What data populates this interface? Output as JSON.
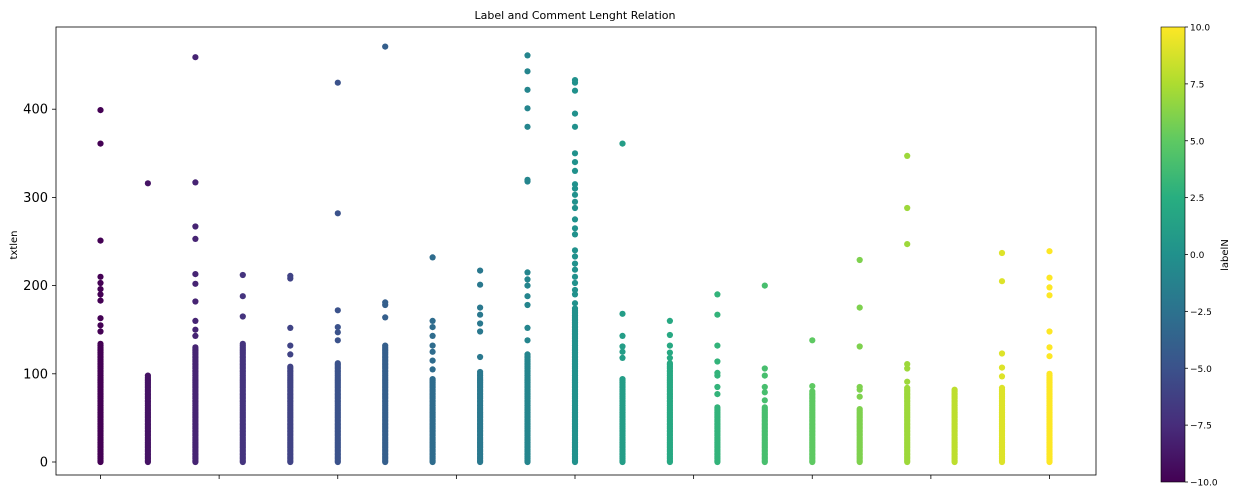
{
  "chart_data": {
    "type": "scatter",
    "title": "Label and Comment Lenght Relation",
    "xlabel": "",
    "ylabel": "txtlen",
    "ylim": [
      -10,
      490
    ],
    "xlim": [
      -10.9,
      10.9
    ],
    "y_ticks": [
      0,
      100,
      200,
      300,
      400
    ],
    "x_ticks": [
      -10,
      -7.5,
      -5,
      -2.5,
      0,
      2.5,
      5,
      7.5,
      10
    ],
    "x_tick_labels_visible": false,
    "grid": false,
    "colormap": "viridis",
    "colorbar": {
      "label": "labelN",
      "range": [
        -10,
        10
      ],
      "ticks": [
        10,
        7.5,
        5,
        2.5,
        0,
        -2.5,
        -5,
        -7.5,
        -10
      ],
      "tick_labels": [
        "10.0",
        "7.5",
        "5.0",
        "2.5",
        "0.0",
        "−2.5",
        "−5.0",
        "−7.5",
        "−10.0"
      ]
    },
    "series": [
      {
        "x": -10,
        "dense_max": 135,
        "outliers": [
          148,
          155,
          163,
          183,
          190,
          196,
          203,
          210,
          251,
          361,
          399
        ]
      },
      {
        "x": -9,
        "dense_max": 98,
        "outliers": [
          316
        ]
      },
      {
        "x": -8,
        "dense_max": 130,
        "outliers": [
          143,
          150,
          160,
          182,
          202,
          213,
          253,
          267,
          317,
          459
        ]
      },
      {
        "x": -7,
        "dense_max": 135,
        "outliers": [
          165,
          188,
          212
        ]
      },
      {
        "x": -6,
        "dense_max": 108,
        "outliers": [
          122,
          132,
          152,
          208,
          211
        ]
      },
      {
        "x": -5,
        "dense_max": 112,
        "outliers": [
          138,
          147,
          153,
          172,
          282,
          430
        ]
      },
      {
        "x": -4,
        "dense_max": 132,
        "outliers": [
          164,
          178,
          181,
          471
        ]
      },
      {
        "x": -3,
        "dense_max": 95,
        "outliers": [
          105,
          115,
          125,
          132,
          143,
          153,
          160,
          232
        ]
      },
      {
        "x": -2,
        "dense_max": 103,
        "outliers": [
          119,
          148,
          157,
          167,
          175,
          201,
          217
        ]
      },
      {
        "x": -1,
        "dense_max": 122,
        "outliers": [
          138,
          152,
          178,
          188,
          200,
          207,
          215,
          318,
          320,
          380,
          401,
          422,
          443,
          461
        ]
      },
      {
        "x": 0,
        "dense_max": 175,
        "outliers": [
          180,
          190,
          195,
          203,
          210,
          218,
          225,
          233,
          240,
          258,
          265,
          275,
          288,
          295,
          303,
          310,
          315,
          330,
          340,
          350,
          380,
          395,
          421,
          430,
          433
        ]
      },
      {
        "x": 1,
        "dense_max": 95,
        "outliers": [
          118,
          125,
          131,
          143,
          168,
          361
        ]
      },
      {
        "x": 2,
        "dense_max": 112,
        "outliers": [
          118,
          124,
          132,
          144,
          160
        ]
      },
      {
        "x": 3,
        "dense_max": 62,
        "outliers": [
          77,
          85,
          98,
          101,
          114,
          132,
          167,
          190
        ]
      },
      {
        "x": 4,
        "dense_max": 62,
        "outliers": [
          70,
          79,
          85,
          98,
          106,
          200
        ]
      },
      {
        "x": 5,
        "dense_max": 80,
        "outliers": [
          86,
          138
        ]
      },
      {
        "x": 6,
        "dense_max": 60,
        "outliers": [
          74,
          82,
          85,
          131,
          175,
          229
        ]
      },
      {
        "x": 7,
        "dense_max": 85,
        "outliers": [
          91,
          106,
          111,
          247,
          288,
          347
        ]
      },
      {
        "x": 8,
        "dense_max": 82,
        "outliers": []
      },
      {
        "x": 9,
        "dense_max": 85,
        "outliers": [
          97,
          107,
          123,
          205,
          237
        ]
      },
      {
        "x": 10,
        "dense_max": 100,
        "outliers": [
          120,
          130,
          148,
          189,
          198,
          209,
          239
        ]
      }
    ]
  }
}
